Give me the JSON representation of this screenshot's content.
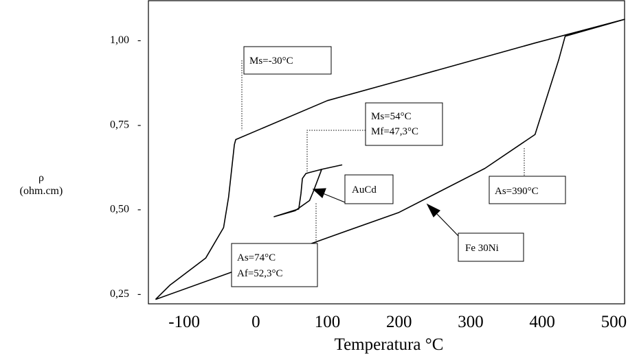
{
  "chart_data": {
    "type": "line",
    "title": "",
    "xlabel": "Temperatura °C",
    "ylabel": "ρ",
    "ylabel_unit": "(ohm.cm)",
    "xlim": [
      -150,
      515
    ],
    "ylim": [
      0.22,
      1.115
    ],
    "x_ticks": [
      -100,
      0,
      100,
      200,
      300,
      400,
      500
    ],
    "x_tick_labels": [
      "-100",
      "0",
      "100",
      "200",
      "300",
      "400",
      "500"
    ],
    "y_ticks": [
      0.25,
      0.5,
      0.75,
      1.0
    ],
    "y_tick_labels": [
      "0,25",
      "0,50",
      "0,75",
      "1,00"
    ],
    "grid": false,
    "series": [
      {
        "name": "Fe 30Ni",
        "x": [
          -140,
          -120,
          -70,
          -45,
          -38,
          -30,
          -28,
          100,
          220,
          390,
          515,
          432,
          423,
          390,
          320,
          200,
          100,
          -140
        ],
        "y": [
          0.233,
          0.275,
          0.355,
          0.445,
          0.535,
          0.69,
          0.705,
          0.82,
          0.89,
          0.99,
          1.06,
          1.01,
          0.94,
          0.72,
          0.62,
          0.49,
          0.415,
          0.233
        ]
      },
      {
        "name": "AuCd",
        "x": [
          25,
          60,
          63,
          65,
          70,
          92,
          120,
          92,
          80,
          75,
          55,
          25
        ],
        "y": [
          0.477,
          0.5,
          0.545,
          0.59,
          0.605,
          0.617,
          0.63,
          0.617,
          0.55,
          0.525,
          0.495,
          0.477
        ]
      }
    ],
    "annotations": [
      {
        "id": "ms-fe",
        "lines": [
          "Ms=-30°C"
        ]
      },
      {
        "id": "ms-mf-aucd",
        "lines": [
          "Ms=54°C",
          "Mf=47,3°C"
        ]
      },
      {
        "id": "aucd-label",
        "lines": [
          "AuCd"
        ]
      },
      {
        "id": "as-fe",
        "lines": [
          "As=390°C"
        ]
      },
      {
        "id": "fe30ni-label",
        "lines": [
          "Fe 30Ni"
        ]
      },
      {
        "id": "as-af-aucd",
        "lines": [
          "As=74°C",
          "Af=52,3°C"
        ]
      }
    ],
    "colors": {
      "line": "#000000",
      "background": "#ffffff"
    }
  }
}
